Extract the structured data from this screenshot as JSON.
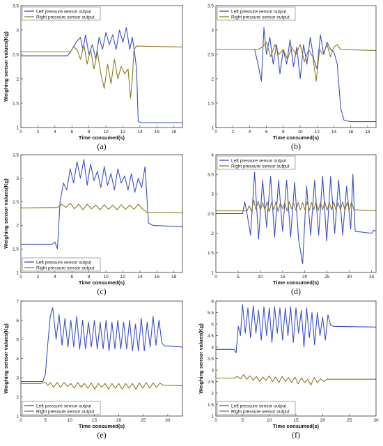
{
  "colors": {
    "left": "#3b4fc4",
    "right": "#8c7a1c"
  },
  "chart_data": [
    {
      "type": "line",
      "panel": "(a)",
      "xlabel": "Time consumed(s)",
      "ylabel": "Weighing sensor values(Kg)",
      "xlim": [
        0,
        19
      ],
      "ylim": [
        1,
        3.5
      ],
      "xticks": [
        0,
        2,
        4,
        6,
        8,
        10,
        12,
        14,
        16,
        18
      ],
      "yticks": [
        1,
        1.5,
        2,
        2.5,
        3,
        3.5
      ],
      "legend": "top-left",
      "series": [
        {
          "name": "Left pressure sensor output",
          "x": [
            0,
            5.5,
            6,
            6.5,
            7,
            7.3,
            7.6,
            8,
            8.4,
            8.8,
            9.2,
            9.6,
            10,
            10.4,
            10.8,
            11.2,
            11.6,
            12,
            12.4,
            12.8,
            13.1,
            13.4,
            13.6,
            13.8,
            14.2,
            19
          ],
          "y": [
            2.47,
            2.47,
            2.6,
            2.75,
            2.85,
            2.6,
            2.9,
            2.5,
            2.7,
            2.4,
            2.85,
            2.6,
            2.95,
            2.7,
            2.9,
            2.6,
            3.0,
            2.75,
            3.05,
            2.6,
            2.85,
            2.5,
            2.2,
            1.12,
            1.1,
            1.1
          ]
        },
        {
          "name": "Right pressure sensor output",
          "x": [
            0,
            5.8,
            6.2,
            6.6,
            7,
            7.4,
            7.8,
            8.2,
            8.6,
            9,
            9.4,
            9.8,
            10.2,
            10.6,
            11,
            11.4,
            11.8,
            12.2,
            12.6,
            12.9,
            13.1,
            13.3,
            13.6,
            19
          ],
          "y": [
            2.55,
            2.55,
            2.65,
            2.6,
            2.4,
            2.7,
            2.3,
            2.6,
            2.2,
            2.55,
            2.1,
            1.8,
            2.3,
            1.9,
            2.4,
            2.0,
            2.25,
            2.1,
            2.2,
            1.6,
            2.0,
            2.6,
            2.67,
            2.65
          ]
        }
      ]
    },
    {
      "type": "line",
      "panel": "(b)",
      "xlabel": "Time consumed(s)",
      "ylabel": "",
      "xlim": [
        0,
        19
      ],
      "ylim": [
        1,
        3.5
      ],
      "xticks": [
        0,
        2,
        4,
        6,
        8,
        10,
        12,
        14,
        16,
        18
      ],
      "yticks": [
        1,
        1.5,
        2,
        2.5,
        3,
        3.5
      ],
      "legend": "top-left",
      "series": [
        {
          "name": "Left pressure sensor output",
          "x": [
            0,
            4.6,
            5,
            5.4,
            5.7,
            6,
            6.4,
            6.8,
            7.2,
            7.6,
            8,
            8.4,
            8.8,
            9.2,
            9.6,
            10,
            10.4,
            10.8,
            11.2,
            11.6,
            12,
            12.4,
            12.8,
            13.2,
            13.6,
            14,
            14.4,
            14.8,
            15.2,
            16,
            19
          ],
          "y": [
            2.6,
            2.6,
            2.3,
            1.95,
            3.05,
            2.5,
            2.85,
            2.3,
            2.7,
            2.1,
            2.6,
            2.3,
            2.8,
            2.25,
            2.65,
            2.0,
            2.7,
            2.3,
            2.85,
            2.4,
            2.2,
            2.9,
            2.5,
            2.75,
            2.6,
            2.55,
            2.3,
            1.4,
            1.15,
            1.12,
            1.12
          ]
        },
        {
          "name": "Right pressure sensor output",
          "x": [
            0,
            5,
            5.5,
            6,
            6.5,
            7,
            7.5,
            8,
            8.5,
            9,
            9.5,
            10,
            10.5,
            11,
            11.5,
            11.9,
            12.3,
            12.7,
            13.2,
            13.6,
            14,
            14.4,
            14.8,
            19
          ],
          "y": [
            2.6,
            2.6,
            2.65,
            2.75,
            2.45,
            2.7,
            2.5,
            2.6,
            2.4,
            2.65,
            2.5,
            2.7,
            2.35,
            2.6,
            2.45,
            1.95,
            2.6,
            2.5,
            2.7,
            2.45,
            2.65,
            2.7,
            2.6,
            2.58
          ]
        }
      ]
    },
    {
      "type": "line",
      "panel": "(c)",
      "xlabel": "Time consumed(s)",
      "ylabel": "Weighing sensor values(Kg)",
      "xlim": [
        0,
        19
      ],
      "ylim": [
        1,
        3.5
      ],
      "xticks": [
        0,
        2,
        4,
        6,
        8,
        10,
        12,
        14,
        16,
        18
      ],
      "yticks": [
        1,
        1.5,
        2,
        2.5,
        3,
        3.5
      ],
      "legend": "bottom-left",
      "series": [
        {
          "name": "Left pressure sensor output",
          "x": [
            0,
            3.7,
            4,
            4.3,
            4.6,
            5,
            5.4,
            5.8,
            6.2,
            6.6,
            7,
            7.4,
            7.8,
            8.2,
            8.6,
            9,
            9.4,
            9.8,
            10.2,
            10.6,
            11,
            11.4,
            11.8,
            12.2,
            12.6,
            13,
            13.4,
            13.8,
            14.2,
            14.6,
            15,
            15.5,
            19
          ],
          "y": [
            1.6,
            1.6,
            1.65,
            1.5,
            2.5,
            2.9,
            2.75,
            3.2,
            2.9,
            3.35,
            3.0,
            3.4,
            2.85,
            3.3,
            2.95,
            3.15,
            2.8,
            3.25,
            2.85,
            3.1,
            2.75,
            3.2,
            2.9,
            3.05,
            2.75,
            3.1,
            2.7,
            3.0,
            2.8,
            3.25,
            2.05,
            2.0,
            1.97
          ]
        },
        {
          "name": "Right pressure sensor output",
          "x": [
            0,
            4.3,
            4.8,
            5.3,
            5.8,
            6.3,
            6.8,
            7.3,
            7.8,
            8.3,
            8.8,
            9.3,
            9.8,
            10.3,
            10.8,
            11.3,
            11.8,
            12.3,
            12.8,
            13.3,
            13.8,
            14.3,
            14.8,
            19
          ],
          "y": [
            2.37,
            2.38,
            2.45,
            2.38,
            2.47,
            2.35,
            2.45,
            2.33,
            2.45,
            2.35,
            2.43,
            2.33,
            2.44,
            2.34,
            2.43,
            2.33,
            2.44,
            2.34,
            2.43,
            2.34,
            2.45,
            2.35,
            2.28,
            2.27
          ]
        }
      ]
    },
    {
      "type": "line",
      "panel": "(d)",
      "xlabel": "Time consumed(s)",
      "ylabel": "",
      "xlim": [
        0,
        36
      ],
      "ylim": [
        1,
        4
      ],
      "xticks": [
        0,
        5,
        10,
        15,
        20,
        25,
        30,
        35
      ],
      "yticks": [
        1,
        1.5,
        2,
        2.5,
        3,
        3.5,
        4
      ],
      "legend": "top-left",
      "series": [
        {
          "name": "Left pressure sensor output",
          "x": [
            0,
            6,
            6.5,
            7,
            7.8,
            8.7,
            9.6,
            10.5,
            11.4,
            12.3,
            13.2,
            14.1,
            15,
            15.9,
            16.8,
            17.7,
            18.6,
            19.5,
            20.4,
            21.3,
            22.2,
            23.1,
            24,
            24.9,
            25.8,
            26.7,
            27.6,
            28.5,
            29.4,
            30.3,
            30.8,
            31.3,
            35,
            35.5,
            36
          ],
          "y": [
            2.5,
            2.5,
            2.8,
            2.5,
            1.95,
            3.55,
            1.85,
            3.35,
            2.15,
            3.45,
            1.9,
            3.35,
            2.05,
            3.35,
            1.9,
            3.3,
            1.85,
            1.22,
            3.2,
            1.95,
            3.35,
            1.95,
            3.45,
            1.8,
            3.45,
            2.0,
            3.35,
            1.95,
            3.2,
            2.1,
            3.5,
            2.05,
            2.0,
            2.08,
            2.05
          ]
        },
        {
          "name": "Right pressure sensor output",
          "x": [
            0,
            7,
            7.5,
            8,
            8.5,
            9,
            9.5,
            10,
            10.5,
            11,
            11.5,
            12,
            12.5,
            13,
            13.5,
            14,
            14.5,
            15,
            15.5,
            16,
            16.5,
            17,
            17.5,
            18,
            18.5,
            19,
            19.5,
            20,
            20.5,
            21,
            21.5,
            22,
            22.5,
            23,
            23.5,
            24,
            24.5,
            25,
            25.5,
            26,
            26.5,
            27,
            27.5,
            28,
            28.5,
            29,
            29.5,
            30,
            30.5,
            31,
            36
          ],
          "y": [
            2.57,
            2.57,
            2.7,
            2.55,
            2.85,
            2.6,
            2.82,
            2.58,
            2.78,
            2.6,
            2.8,
            2.55,
            2.78,
            2.6,
            2.8,
            2.55,
            2.78,
            2.62,
            2.78,
            2.56,
            2.8,
            2.62,
            2.75,
            2.58,
            2.78,
            2.6,
            2.78,
            2.6,
            2.8,
            2.58,
            2.78,
            2.6,
            2.8,
            2.58,
            2.78,
            2.6,
            2.8,
            2.58,
            2.78,
            2.6,
            2.8,
            2.58,
            2.78,
            2.6,
            2.8,
            2.58,
            2.78,
            2.6,
            2.8,
            2.6,
            2.57
          ]
        }
      ]
    },
    {
      "type": "line",
      "panel": "(e)",
      "xlabel": "Time consumed(s)",
      "ylabel": "Weighing sensor values(Kg)",
      "xlim": [
        0,
        33
      ],
      "ylim": [
        1,
        7
      ],
      "xticks": [
        0,
        5,
        10,
        15,
        20,
        25,
        30
      ],
      "yticks": [
        1,
        2,
        3,
        4,
        5,
        6,
        7
      ],
      "legend": "bottom-left",
      "series": [
        {
          "name": "Left pressure sensor output",
          "x": [
            0,
            4.5,
            5,
            5.5,
            6,
            6.5,
            7.2,
            7.8,
            8.4,
            9,
            9.6,
            10.2,
            10.8,
            11.4,
            12,
            12.6,
            13.2,
            13.8,
            14.4,
            15,
            15.6,
            16.2,
            16.8,
            17.4,
            18,
            18.6,
            19.2,
            19.8,
            20.4,
            21,
            21.6,
            22.2,
            22.8,
            23.4,
            24,
            24.6,
            25.2,
            25.8,
            26.4,
            27,
            27.6,
            28.2,
            28.8,
            29.4,
            30,
            33
          ],
          "y": [
            2.8,
            2.8,
            3.2,
            4.8,
            6.2,
            6.65,
            5.0,
            6.3,
            4.7,
            6.1,
            4.6,
            6.0,
            4.6,
            6.2,
            4.5,
            6.0,
            4.5,
            5.9,
            4.6,
            6.0,
            4.5,
            5.9,
            4.5,
            6.0,
            4.4,
            5.9,
            4.5,
            6.0,
            4.5,
            5.9,
            4.5,
            6.0,
            4.4,
            5.8,
            4.4,
            6.1,
            4.4,
            5.9,
            4.6,
            6.2,
            4.7,
            6.0,
            4.8,
            4.65,
            4.65,
            4.6
          ]
        },
        {
          "name": "Right pressure sensor output",
          "x": [
            0,
            4,
            5,
            5.5,
            6,
            6.7,
            7.4,
            8.1,
            8.8,
            9.5,
            10.2,
            10.9,
            11.6,
            12.3,
            13,
            13.7,
            14.4,
            15.1,
            15.8,
            16.5,
            17.2,
            17.9,
            18.6,
            19.3,
            20,
            20.7,
            21.4,
            22.1,
            22.8,
            23.5,
            24.2,
            24.9,
            25.6,
            26.3,
            27,
            27.7,
            28.4,
            29.1,
            29.8,
            33
          ],
          "y": [
            2.7,
            2.7,
            2.75,
            2.6,
            2.75,
            2.5,
            2.75,
            2.5,
            2.75,
            2.55,
            2.7,
            2.45,
            2.75,
            2.5,
            2.7,
            2.45,
            2.72,
            2.4,
            2.7,
            2.5,
            2.7,
            2.4,
            2.7,
            2.45,
            2.7,
            2.4,
            2.7,
            2.45,
            2.7,
            2.4,
            2.72,
            2.45,
            2.75,
            2.45,
            2.72,
            2.5,
            2.72,
            2.6,
            2.6,
            2.58
          ]
        }
      ]
    },
    {
      "type": "line",
      "panel": "(f)",
      "xlabel": "Time consumed(s)",
      "ylabel": "Weighing sensor values(Kg)",
      "xlim": [
        0,
        30
      ],
      "ylim": [
        1,
        6
      ],
      "xticks": [
        0,
        5,
        10,
        15,
        20,
        25,
        30
      ],
      "yticks": [
        1,
        1.5,
        2,
        2.5,
        3,
        3.5,
        4,
        4.5,
        5,
        5.5,
        6
      ],
      "legend": "bottom-left",
      "series": [
        {
          "name": "Left pressure sensor output",
          "x": [
            0,
            3.4,
            3.8,
            4.2,
            4.6,
            5,
            5.5,
            6,
            6.5,
            7,
            7.5,
            8,
            8.5,
            9,
            9.5,
            10,
            10.5,
            11,
            11.5,
            12,
            12.5,
            13,
            13.5,
            14,
            14.5,
            15,
            15.5,
            16,
            16.5,
            17,
            17.5,
            18,
            18.5,
            19,
            19.5,
            20,
            20.5,
            21,
            21.5,
            22,
            30
          ],
          "y": [
            3.9,
            3.9,
            3.75,
            4.9,
            4.5,
            5.85,
            4.6,
            5.7,
            4.4,
            5.8,
            4.6,
            5.6,
            4.3,
            5.75,
            4.5,
            5.7,
            4.2,
            5.75,
            4.6,
            5.7,
            4.3,
            5.7,
            4.5,
            5.75,
            4.2,
            5.7,
            4.6,
            5.6,
            4.0,
            5.7,
            4.4,
            5.5,
            4.1,
            5.5,
            4.5,
            5.3,
            4.3,
            5.4,
            4.95,
            4.9,
            4.87
          ]
        },
        {
          "name": "Right pressure sensor output",
          "x": [
            0,
            3.5,
            4,
            4.6,
            5.2,
            5.8,
            6.4,
            7,
            7.6,
            8.2,
            8.8,
            9.4,
            10,
            10.6,
            11.2,
            11.8,
            12.4,
            13,
            13.6,
            14.2,
            14.8,
            15.4,
            16,
            16.6,
            17.2,
            17.8,
            18.4,
            19,
            19.6,
            20.2,
            20.8,
            21.4,
            30
          ],
          "y": [
            2.65,
            2.65,
            2.72,
            2.62,
            2.8,
            2.6,
            2.75,
            2.55,
            2.72,
            2.5,
            2.7,
            2.55,
            2.75,
            2.5,
            2.7,
            2.45,
            2.72,
            2.5,
            2.68,
            2.45,
            2.7,
            2.4,
            2.65,
            2.45,
            2.6,
            2.35,
            2.68,
            2.45,
            2.62,
            2.5,
            2.6,
            2.6,
            2.6
          ]
        }
      ]
    }
  ]
}
